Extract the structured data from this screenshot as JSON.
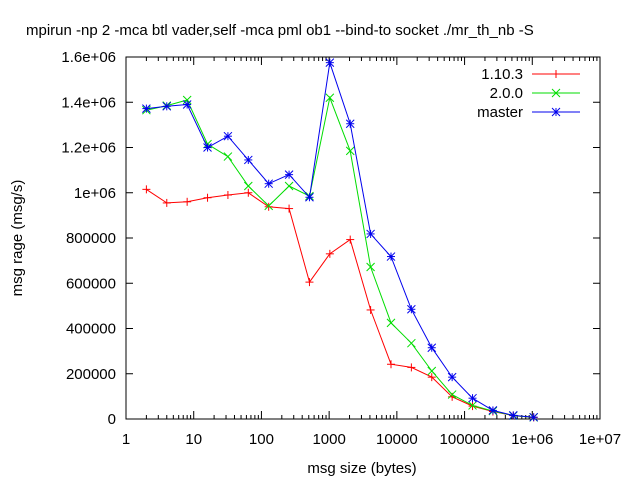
{
  "chart_data": {
    "type": "line",
    "title": "mpirun -np 2 -mca btl vader,self -mca pml ob1 --bind-to socket ./mr_th_nb -S",
    "xlabel": "msg size (bytes)",
    "ylabel": "msg rage (msg/s)",
    "x_scale": "log",
    "xlim": [
      1,
      10000000
    ],
    "ylim": [
      0,
      1600000
    ],
    "x_ticks": [
      {
        "value": 1,
        "label": "1"
      },
      {
        "value": 10,
        "label": "10"
      },
      {
        "value": 100,
        "label": "100"
      },
      {
        "value": 1000,
        "label": "1000"
      },
      {
        "value": 10000,
        "label": "10000"
      },
      {
        "value": 100000,
        "label": "100000"
      },
      {
        "value": 1000000,
        "label": "1e+06"
      },
      {
        "value": 10000000,
        "label": "1e+07"
      }
    ],
    "y_ticks": [
      {
        "value": 0,
        "label": "0"
      },
      {
        "value": 200000,
        "label": "200000"
      },
      {
        "value": 400000,
        "label": "400000"
      },
      {
        "value": 600000,
        "label": "600000"
      },
      {
        "value": 800000,
        "label": "800000"
      },
      {
        "value": 1000000,
        "label": "1e+06"
      },
      {
        "value": 1200000,
        "label": "1.2e+06"
      },
      {
        "value": 1400000,
        "label": "1.4e+06"
      },
      {
        "value": 1600000,
        "label": "1.6e+06"
      }
    ],
    "grid": false,
    "legend_position": "top-right",
    "x": [
      2,
      4,
      8,
      16,
      32,
      64,
      128,
      256,
      512,
      1024,
      2048,
      4096,
      8192,
      16384,
      32768,
      65536,
      131072,
      262144,
      524288,
      1048576
    ],
    "series": [
      {
        "name": "1.10.3",
        "color": "#ff0000",
        "marker": "plus",
        "values": [
          1015000,
          955000,
          960000,
          978000,
          990000,
          1000000,
          938000,
          930000,
          605000,
          730000,
          793000,
          482000,
          242000,
          228000,
          185000,
          98000,
          57000,
          33000,
          15000,
          7000
        ]
      },
      {
        "name": "2.0.0",
        "color": "#00dd00",
        "marker": "cross",
        "values": [
          1365000,
          1385000,
          1410000,
          1215000,
          1160000,
          1030000,
          942000,
          1030000,
          985000,
          1420000,
          1185000,
          672000,
          425000,
          335000,
          212000,
          108000,
          60000,
          35000,
          15000,
          7000
        ]
      },
      {
        "name": "master",
        "color": "#0000ee",
        "marker": "star",
        "values": [
          1372000,
          1382000,
          1390000,
          1200000,
          1250000,
          1145000,
          1040000,
          1080000,
          980000,
          1575000,
          1305000,
          818000,
          718000,
          485000,
          315000,
          185000,
          92000,
          38000,
          16000,
          8000
        ]
      }
    ]
  }
}
